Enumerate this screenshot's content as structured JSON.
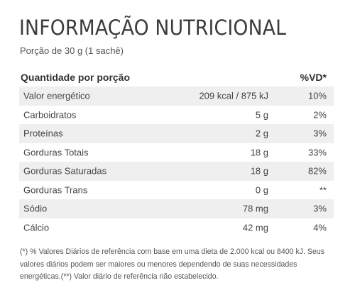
{
  "title": "INFORMAÇÃO NUTRICIONAL",
  "serving": "Porção de 30 g (1 sachê)",
  "header": {
    "quantity_label": "Quantidade por porção",
    "vd_label": "%VD*"
  },
  "rows": [
    {
      "name": "Valor energético",
      "amount": "209 kcal / 875 kJ",
      "vd": "10%"
    },
    {
      "name": "Carboidratos",
      "amount": "5 g",
      "vd": "2%"
    },
    {
      "name": "Proteínas",
      "amount": "2 g",
      "vd": "3%"
    },
    {
      "name": "Gorduras Totais",
      "amount": "18 g",
      "vd": "33%"
    },
    {
      "name": "Gorduras Saturadas",
      "amount": "18 g",
      "vd": "82%"
    },
    {
      "name": "Gorduras Trans",
      "amount": "0 g",
      "vd": "**"
    },
    {
      "name": "Sódio",
      "amount": "78 mg",
      "vd": "3%"
    },
    {
      "name": "Cálcio",
      "amount": "42 mg",
      "vd": "4%"
    }
  ],
  "footnote": "(*) % Valores Diários de referência com base em uma dieta de 2.000 kcal ou 8400 kJ. Seus valores diários podem ser maiores ou menores dependendo de suas necessidades energéticas.(**) Valor diário de referência não estabelecido."
}
